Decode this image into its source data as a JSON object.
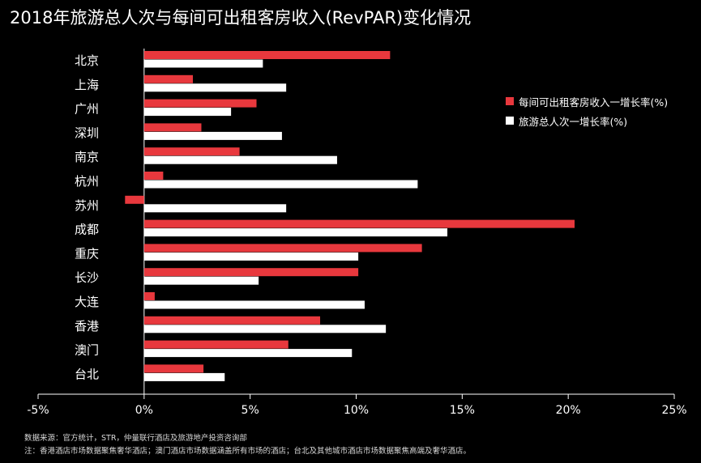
{
  "chart_data": {
    "type": "bar",
    "orientation": "horizontal",
    "title": "2018年旅游总人次与每间可出租客房收入(RevPAR)变化情况",
    "categories": [
      "北京",
      "上海",
      "广州",
      "深圳",
      "南京",
      "杭州",
      "苏州",
      "成都",
      "重庆",
      "长沙",
      "大连",
      "香港",
      "澳门",
      "台北"
    ],
    "series": [
      {
        "name": "每间可出租客房收入一增长率(%)",
        "color": "#e8383d",
        "values": [
          11.6,
          2.3,
          5.3,
          2.7,
          4.5,
          0.9,
          -0.9,
          20.3,
          13.1,
          10.1,
          0.5,
          8.3,
          6.8,
          2.8
        ]
      },
      {
        "name": "旅游总人次一增长率(%)",
        "color": "#ffffff",
        "values": [
          5.6,
          6.7,
          4.1,
          6.5,
          9.1,
          12.9,
          6.7,
          14.3,
          10.1,
          5.4,
          10.4,
          11.4,
          9.8,
          3.8
        ]
      }
    ],
    "xlim": [
      -5,
      25
    ],
    "xticks": [
      -5,
      0,
      5,
      10,
      15,
      20,
      25
    ],
    "xtick_labels": [
      "-5%",
      "0%",
      "5%",
      "10%",
      "15%",
      "20%",
      "25%"
    ],
    "grid": false,
    "legend_position": "right"
  },
  "footer": {
    "source": "数据来源：官方统计，STR，仲量联行酒店及旅游地产投资咨询部",
    "note": "注：香港酒店市场数据聚焦奢华酒店；澳门酒店市场数据涵盖所有市场的酒店；台北及其他城市酒店市场数据聚焦高端及奢华酒店。"
  }
}
